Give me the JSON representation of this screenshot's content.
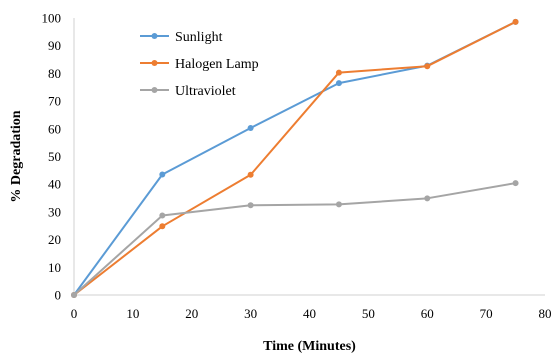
{
  "chart_data": {
    "type": "line",
    "title": "",
    "xlabel": "Time (Minutes)",
    "ylabel": "% Degradation",
    "xlim": [
      0,
      80
    ],
    "ylim": [
      0,
      100
    ],
    "xticks": [
      0,
      10,
      20,
      30,
      40,
      50,
      60,
      70,
      80
    ],
    "yticks": [
      0,
      10,
      20,
      30,
      40,
      50,
      60,
      70,
      80,
      90,
      100
    ],
    "grid": false,
    "legend_position": "top-left",
    "series": [
      {
        "name": "Sunlight",
        "color": "#5B9BD5",
        "x": [
          0,
          15,
          30,
          45,
          60,
          75
        ],
        "y": [
          0,
          43.5,
          60.3,
          76.5,
          82.8,
          98.6
        ]
      },
      {
        "name": "Halogen Lamp",
        "color": "#ED7D31",
        "x": [
          0,
          15,
          30,
          45,
          60,
          75
        ],
        "y": [
          0,
          24.8,
          43.4,
          80.3,
          82.6,
          98.6
        ]
      },
      {
        "name": "Ultraviolet",
        "color": "#A5A5A5",
        "x": [
          0,
          15,
          30,
          45,
          60,
          75
        ],
        "y": [
          0,
          28.7,
          32.4,
          32.7,
          34.9,
          40.4
        ]
      }
    ]
  }
}
